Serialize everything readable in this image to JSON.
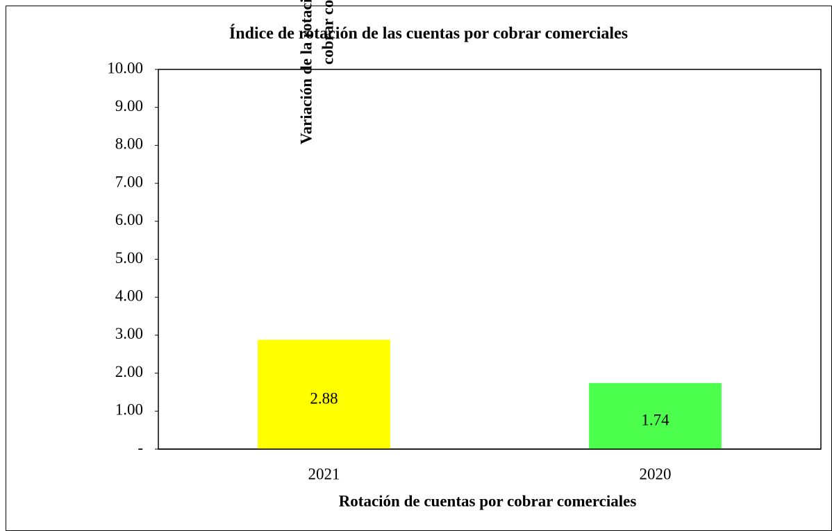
{
  "chart_data": {
    "type": "bar",
    "title": "Índice de rotación de las cuentas por cobrar comerciales",
    "y_label": [
      "Variación de la rotación de las cuentas por",
      "cobrar comerciales"
    ],
    "x_label": "Rotación de cuentas por cobrar comerciales",
    "categories": [
      "2021",
      "2020"
    ],
    "values": [
      2.88,
      1.74
    ],
    "colors": [
      "#ffff00",
      "#4cff4c"
    ],
    "ylim": [
      0,
      10
    ],
    "yticks": [
      {
        "value": 0,
        "label": "-"
      },
      {
        "value": 1,
        "label": "1.00"
      },
      {
        "value": 2,
        "label": "2.00"
      },
      {
        "value": 3,
        "label": "3.00"
      },
      {
        "value": 4,
        "label": "4.00"
      },
      {
        "value": 5,
        "label": "5.00"
      },
      {
        "value": 6,
        "label": "6.00"
      },
      {
        "value": 7,
        "label": "7.00"
      },
      {
        "value": 8,
        "label": "8.00"
      },
      {
        "value": 9,
        "label": "9.00"
      },
      {
        "value": 10,
        "label": "10.00"
      }
    ],
    "grid": false
  }
}
